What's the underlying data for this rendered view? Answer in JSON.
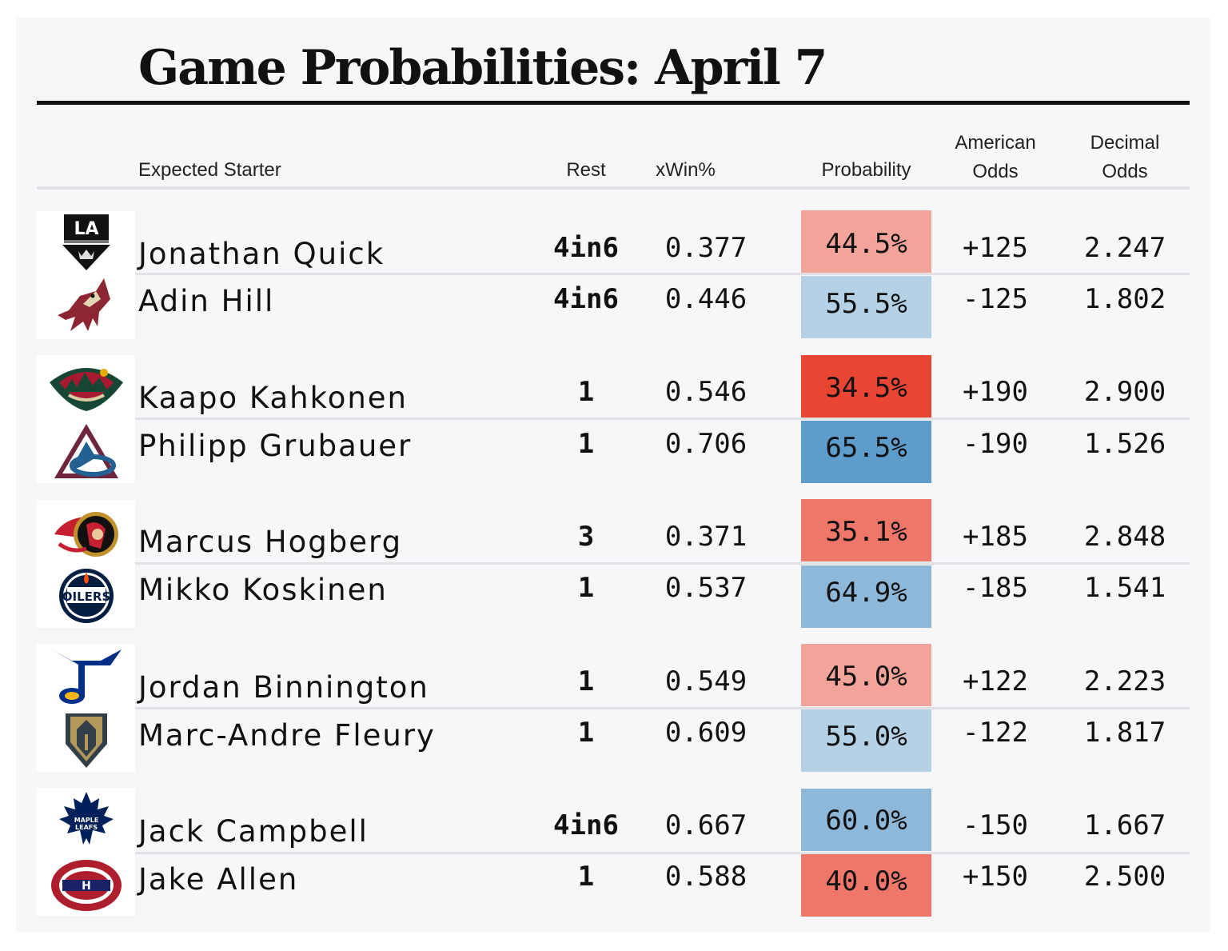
{
  "title": "Game Probabilities: April 7",
  "columns": {
    "starter": "Expected Starter",
    "rest": "Rest",
    "xwin": "xWin%",
    "probability": "Probability",
    "american_1": "American",
    "american_2": "Odds",
    "decimal_1": "Decimal",
    "decimal_2": "Odds"
  },
  "colors": {
    "fav_blue_light": "#b4d1e6",
    "fav_blue_mid": "#8db8da",
    "fav_blue_dark": "#5e9ccb",
    "dog_red_light": "#f2a49b",
    "dog_red_mid": "#ef776a",
    "dog_red_dark": "#e84533"
  },
  "chart_data": {
    "type": "table",
    "games": [
      {
        "rows": [
          {
            "team_logo": "kings-logo",
            "name": "Jonathan Quick",
            "rest": "4in6",
            "xwin": "0.377",
            "probability": "44.5%",
            "prob_value": 44.5,
            "american": "+125",
            "decimal": "2.247"
          },
          {
            "team_logo": "coyotes-logo",
            "name": "Adin Hill",
            "rest": "4in6",
            "xwin": "0.446",
            "probability": "55.5%",
            "prob_value": 55.5,
            "american": "-125",
            "decimal": "1.802"
          }
        ]
      },
      {
        "rows": [
          {
            "team_logo": "wild-logo",
            "name": "Kaapo Kahkonen",
            "rest": "1",
            "xwin": "0.546",
            "probability": "34.5%",
            "prob_value": 34.5,
            "american": "+190",
            "decimal": "2.900"
          },
          {
            "team_logo": "avalanche-logo",
            "name": "Philipp Grubauer",
            "rest": "1",
            "xwin": "0.706",
            "probability": "65.5%",
            "prob_value": 65.5,
            "american": "-190",
            "decimal": "1.526"
          }
        ]
      },
      {
        "rows": [
          {
            "team_logo": "senators-logo",
            "name": "Marcus Hogberg",
            "rest": "3",
            "xwin": "0.371",
            "probability": "35.1%",
            "prob_value": 35.1,
            "american": "+185",
            "decimal": "2.848"
          },
          {
            "team_logo": "oilers-logo",
            "name": "Mikko Koskinen",
            "rest": "1",
            "xwin": "0.537",
            "probability": "64.9%",
            "prob_value": 64.9,
            "american": "-185",
            "decimal": "1.541"
          }
        ]
      },
      {
        "rows": [
          {
            "team_logo": "blues-logo",
            "name": "Jordan Binnington",
            "rest": "1",
            "xwin": "0.549",
            "probability": "45.0%",
            "prob_value": 45.0,
            "american": "+122",
            "decimal": "2.223"
          },
          {
            "team_logo": "golden-knights-logo",
            "name": "Marc-Andre Fleury",
            "rest": "1",
            "xwin": "0.609",
            "probability": "55.0%",
            "prob_value": 55.0,
            "american": "-122",
            "decimal": "1.817"
          }
        ]
      },
      {
        "rows": [
          {
            "team_logo": "maple-leafs-logo",
            "name": "Jack Campbell",
            "rest": "4in6",
            "xwin": "0.667",
            "probability": "60.0%",
            "prob_value": 60.0,
            "american": "-150",
            "decimal": "1.667"
          },
          {
            "team_logo": "canadiens-logo",
            "name": "Jake Allen",
            "rest": "1",
            "xwin": "0.588",
            "probability": "40.0%",
            "prob_value": 40.0,
            "american": "+150",
            "decimal": "2.500"
          }
        ]
      }
    ]
  }
}
